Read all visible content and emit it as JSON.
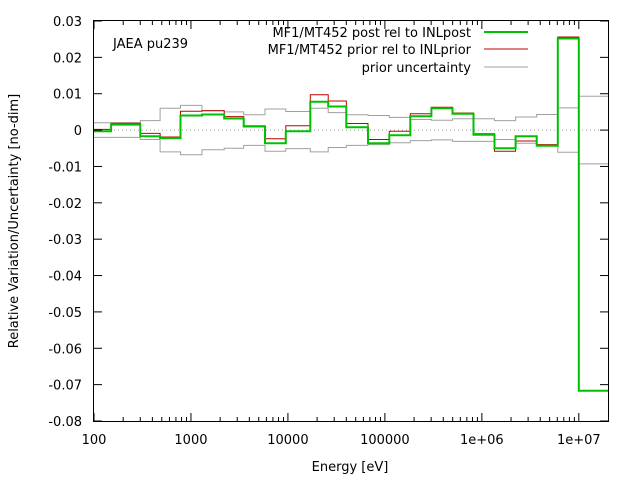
{
  "chart_data": {
    "type": "line",
    "title": "",
    "annotation": "JAEA pu239",
    "xlabel": "Energy [eV]",
    "ylabel": "Relative Variation/Uncertainty [no-dim]",
    "xscale": "log",
    "xlim": [
      100,
      20000000
    ],
    "ylim": [
      -0.08,
      0.03
    ],
    "grid": false,
    "legend_position": "top-right",
    "x_ticks": [
      {
        "value": 100,
        "label": "100"
      },
      {
        "value": 1000,
        "label": "1000"
      },
      {
        "value": 10000,
        "label": "10000"
      },
      {
        "value": 100000,
        "label": "100000"
      },
      {
        "value": 1000000,
        "label": "1e+06"
      },
      {
        "value": 10000000,
        "label": "1e+07"
      }
    ],
    "y_ticks": [
      {
        "value": 0.03,
        "label": "0.03"
      },
      {
        "value": 0.02,
        "label": "0.02"
      },
      {
        "value": 0.01,
        "label": "0.01"
      },
      {
        "value": 0,
        "label": "0"
      },
      {
        "value": -0.01,
        "label": "-0.01"
      },
      {
        "value": -0.02,
        "label": "-0.02"
      },
      {
        "value": -0.03,
        "label": "-0.03"
      },
      {
        "value": -0.04,
        "label": "-0.04"
      },
      {
        "value": -0.05,
        "label": "-0.05"
      },
      {
        "value": -0.06,
        "label": "-0.06"
      },
      {
        "value": -0.07,
        "label": "-0.07"
      },
      {
        "value": -0.08,
        "label": "-0.08"
      }
    ],
    "bin_edges": [
      100,
      150,
      300,
      480,
      780,
      1300,
      2200,
      3500,
      5800,
      9500,
      17000,
      26000,
      40000,
      67000,
      111000,
      183000,
      302000,
      498000,
      821000,
      1350000,
      2230000,
      3680000,
      6070000,
      10000000,
      20000000
    ],
    "series": [
      {
        "name": "MF1/MT452 post rel to INLpost",
        "color": "#00c000",
        "stroke_width": 2,
        "values": [
          -0.0003,
          0.0015,
          -0.0017,
          -0.0022,
          0.004,
          0.0043,
          0.0032,
          0.001,
          -0.0036,
          -0.0003,
          0.0078,
          0.0065,
          0.0008,
          -0.0036,
          -0.0014,
          0.0038,
          0.006,
          0.0045,
          -0.0013,
          -0.005,
          -0.0017,
          -0.0043,
          0.0252,
          -0.0717
        ]
      },
      {
        "name": "MF1/MT452 prior rel to INLprior",
        "color": "#c00000",
        "stroke_width": 1,
        "values": [
          0.0002,
          0.0019,
          -0.0009,
          -0.0019,
          0.0052,
          0.0053,
          0.0037,
          0.0012,
          -0.0024,
          0.0012,
          0.0097,
          0.008,
          0.0018,
          -0.0026,
          -0.0003,
          0.0045,
          0.0063,
          0.0047,
          -0.001,
          -0.0058,
          -0.003,
          -0.004,
          0.0256,
          -0.0717
        ]
      },
      {
        "name": "prior uncertainty",
        "color": "#a0a0a0",
        "stroke_width": 1,
        "symmetric": true,
        "values": [
          0.002,
          0.002,
          0.0026,
          0.006,
          0.0068,
          0.0054,
          0.005,
          0.0042,
          0.0058,
          0.0051,
          0.006,
          0.0048,
          0.0042,
          0.004,
          0.0035,
          0.0029,
          0.0027,
          0.0031,
          0.0031,
          0.0026,
          0.0036,
          0.0043,
          0.0061,
          0.0093
        ]
      }
    ],
    "zero_line": {
      "value": 0,
      "style": "dotted",
      "color": "#a0a0a0"
    }
  }
}
